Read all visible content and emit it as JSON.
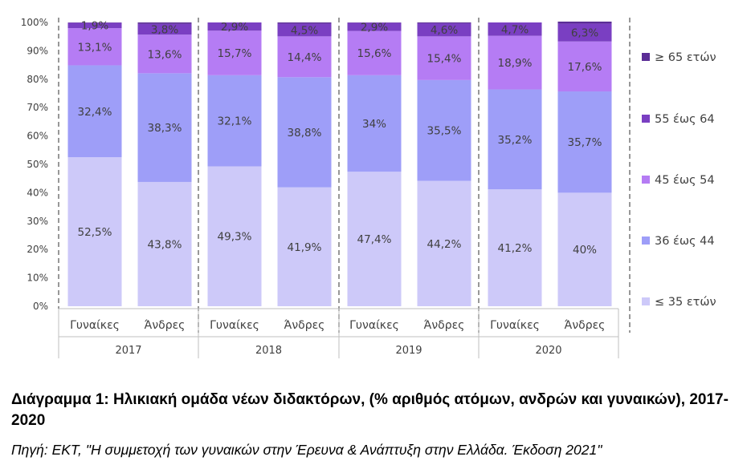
{
  "chart_data": {
    "type": "bar",
    "stacked": true,
    "groups": [
      "2017",
      "2018",
      "2019",
      "2020"
    ],
    "categories": [
      "Γυναίκες",
      "Άνδρες",
      "Γυναίκες",
      "Άνδρες",
      "Γυναίκες",
      "Άνδρες",
      "Γυναίκες",
      "Άνδρες"
    ],
    "series": [
      {
        "name": "≤ 35 ετών",
        "color": "#cdc9f9",
        "values": [
          52.5,
          43.8,
          49.3,
          41.9,
          47.4,
          44.2,
          41.2,
          40
        ],
        "labels": [
          "52,5%",
          "43,8%",
          "49,3%",
          "41,9%",
          "47,4%",
          "44,2%",
          "41,2%",
          "40%"
        ]
      },
      {
        "name": "36 έως 44",
        "color": "#9e9ef8",
        "values": [
          32.4,
          38.3,
          32.1,
          38.8,
          34,
          35.5,
          35.2,
          35.7
        ],
        "labels": [
          "32,4%",
          "38,3%",
          "32,1%",
          "38,8%",
          "34%",
          "35,5%",
          "35,2%",
          "35,7%"
        ]
      },
      {
        "name": "45 έως 54",
        "color": "#b57cf4",
        "values": [
          13.1,
          13.6,
          15.7,
          14.4,
          15.6,
          15.4,
          18.9,
          17.6
        ],
        "labels": [
          "13,1%",
          "13,6%",
          "15,7%",
          "14,4%",
          "15,6%",
          "15,4%",
          "18,9%",
          "17,6%"
        ]
      },
      {
        "name": "55 έως 64",
        "color": "#7a3fc2",
        "values": [
          1.9,
          3.8,
          2.9,
          4.5,
          2.9,
          4.6,
          4.7,
          6.3
        ],
        "labels": [
          "1,9%",
          "3,8%",
          "2,9%",
          "4,5%",
          "2,9%",
          "4,6%",
          "4,7%",
          "6,3%"
        ]
      },
      {
        "name": "≥ 65 ετών",
        "color": "#5b2d96",
        "values": [
          0.1,
          0.5,
          0,
          0.4,
          0.1,
          0.3,
          0,
          0.7
        ],
        "labels": [
          "",
          "",
          "",
          "",
          "",
          "",
          "",
          ""
        ]
      }
    ],
    "legend_order": [
      "≥ 65 ετών",
      "55 έως 64",
      "45 έως 54",
      "36 έως 44",
      "≤ 35 ετών"
    ],
    "legend_position": "right",
    "yticks": [
      "0%",
      "10%",
      "20%",
      "30%",
      "40%",
      "50%",
      "60%",
      "70%",
      "80%",
      "90%",
      "100%"
    ],
    "ylim": [
      0,
      100
    ],
    "grid": false,
    "title": "",
    "xlabel": "",
    "ylabel": ""
  },
  "caption": {
    "title": "Διάγραμμα 1: Ηλικιακή ομάδα νέων διδακτόρων, (% αριθμός ατόμων, ανδρών και γυναικών), 2017-2020",
    "source": "Πηγή: ΕΚΤ, \"Η συμμετοχή των γυναικών στην Έρευνα & Ανάπτυξη στην Ελλάδα. Έκδοση 2021\""
  }
}
